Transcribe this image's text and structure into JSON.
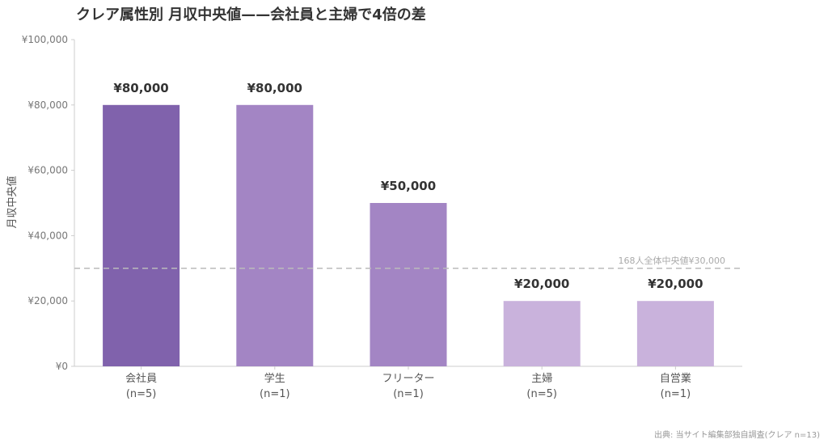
{
  "title": "クレア属性別 月収中央値——会社員と主婦で4倍の差",
  "source": "出典: 当サイト編集部独自調査(クレア n=13)",
  "chart_data": {
    "type": "bar",
    "categories": [
      "会社員",
      "学生",
      "フリーター",
      "主婦",
      "自営業"
    ],
    "category_notes": [
      "(n=5)",
      "(n=1)",
      "(n=1)",
      "(n=5)",
      "(n=1)"
    ],
    "values": [
      80000,
      80000,
      50000,
      20000,
      20000
    ],
    "value_labels": [
      "¥80,000",
      "¥80,000",
      "¥50,000",
      "¥20,000",
      "¥20,000"
    ],
    "colors": [
      "#8062AC",
      "#A385C4",
      "#A385C4",
      "#C9B2DC",
      "#C9B2DC"
    ],
    "ylabel": "月収中央値",
    "ylim": [
      0,
      100000
    ],
    "yticks": [
      0,
      20000,
      40000,
      60000,
      80000,
      100000
    ],
    "ytick_labels": [
      "¥0",
      "¥20,000",
      "¥40,000",
      "¥60,000",
      "¥80,000",
      "¥100,000"
    ],
    "reference_line": {
      "value": 30000,
      "label": "168人全体中央値¥30,000",
      "color": "#BBBBBB"
    },
    "grid": false
  }
}
